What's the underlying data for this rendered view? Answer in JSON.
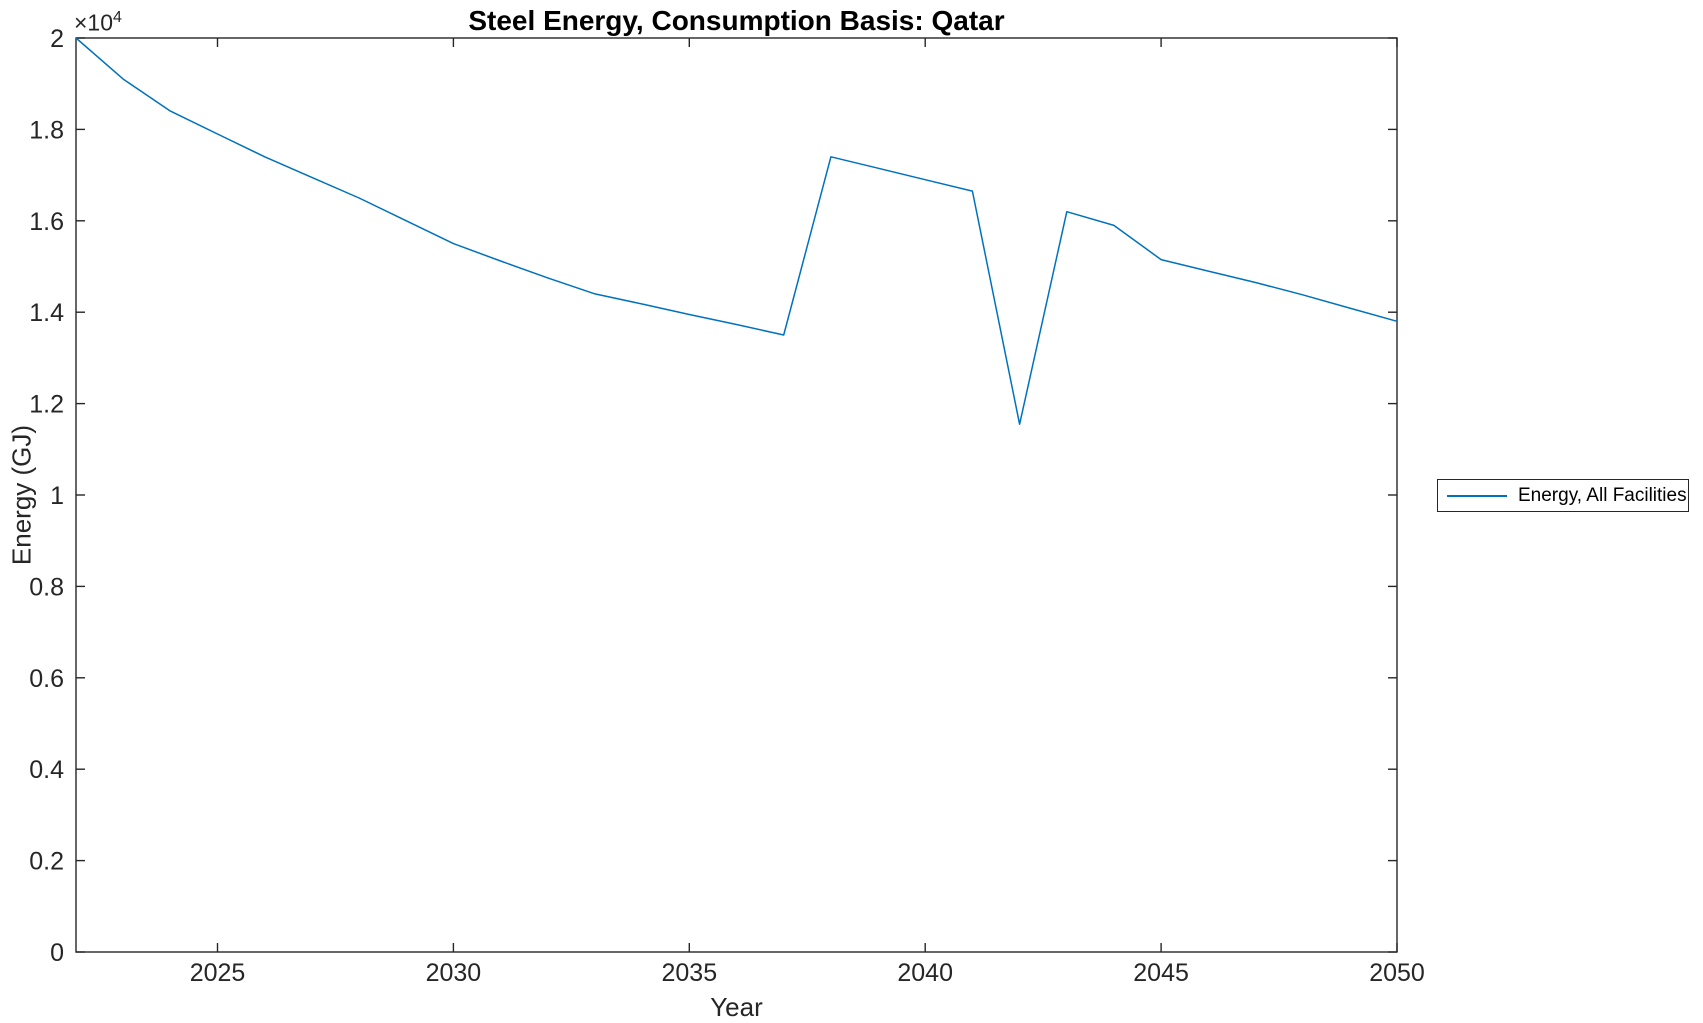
{
  "figure": {
    "title": "Steel Energy, Consumption Basis: Qatar",
    "xlabel": "Year",
    "ylabel": "Energy (GJ)",
    "y_multiplier_base": "×10",
    "y_multiplier_exponent": "4",
    "background_color": "#ffffff",
    "axis_color": "#262626",
    "legend": {
      "position": "right-outside-middle",
      "entries": [
        {
          "label": "Energy, All Facilities",
          "color": "#0072BD"
        }
      ]
    }
  },
  "chart_data": {
    "type": "line",
    "title": "Steel Energy, Consumption Basis: Qatar",
    "xlabel": "Year",
    "ylabel": "Energy (GJ)",
    "y_axis_multiplier": "1e4",
    "xlim": [
      2022,
      2050
    ],
    "ylim": [
      0,
      20000
    ],
    "grid": false,
    "xtick_values": [
      2025,
      2030,
      2035,
      2040,
      2045,
      2050
    ],
    "xtick_labels": [
      "2025",
      "2030",
      "2035",
      "2040",
      "2045",
      "2050"
    ],
    "ytick_values": [
      0,
      2000,
      4000,
      6000,
      8000,
      10000,
      12000,
      14000,
      16000,
      18000,
      20000
    ],
    "ytick_labels": [
      "0",
      "0.2",
      "0.4",
      "0.6",
      "0.8",
      "1",
      "1.2",
      "1.4",
      "1.6",
      "1.8",
      "2"
    ],
    "legend_position": "right-outside",
    "series": [
      {
        "name": "Energy, All Facilities",
        "color": "#0072BD",
        "x": [
          2022,
          2023,
          2024,
          2025,
          2026,
          2027,
          2028,
          2029,
          2030,
          2031,
          2032,
          2033,
          2034,
          2035,
          2036,
          2037,
          2038,
          2039,
          2040,
          2041,
          2042,
          2043,
          2044,
          2045,
          2046,
          2047,
          2048,
          2049,
          2050
        ],
        "y": [
          20000,
          19100,
          18400,
          17900,
          17400,
          16950,
          16500,
          16000,
          15500,
          15120,
          14750,
          14400,
          14180,
          13950,
          13730,
          13500,
          17400,
          17150,
          16900,
          16650,
          11550,
          16200,
          15900,
          15150,
          14900,
          14650,
          14380,
          14090,
          13800
        ]
      }
    ]
  }
}
